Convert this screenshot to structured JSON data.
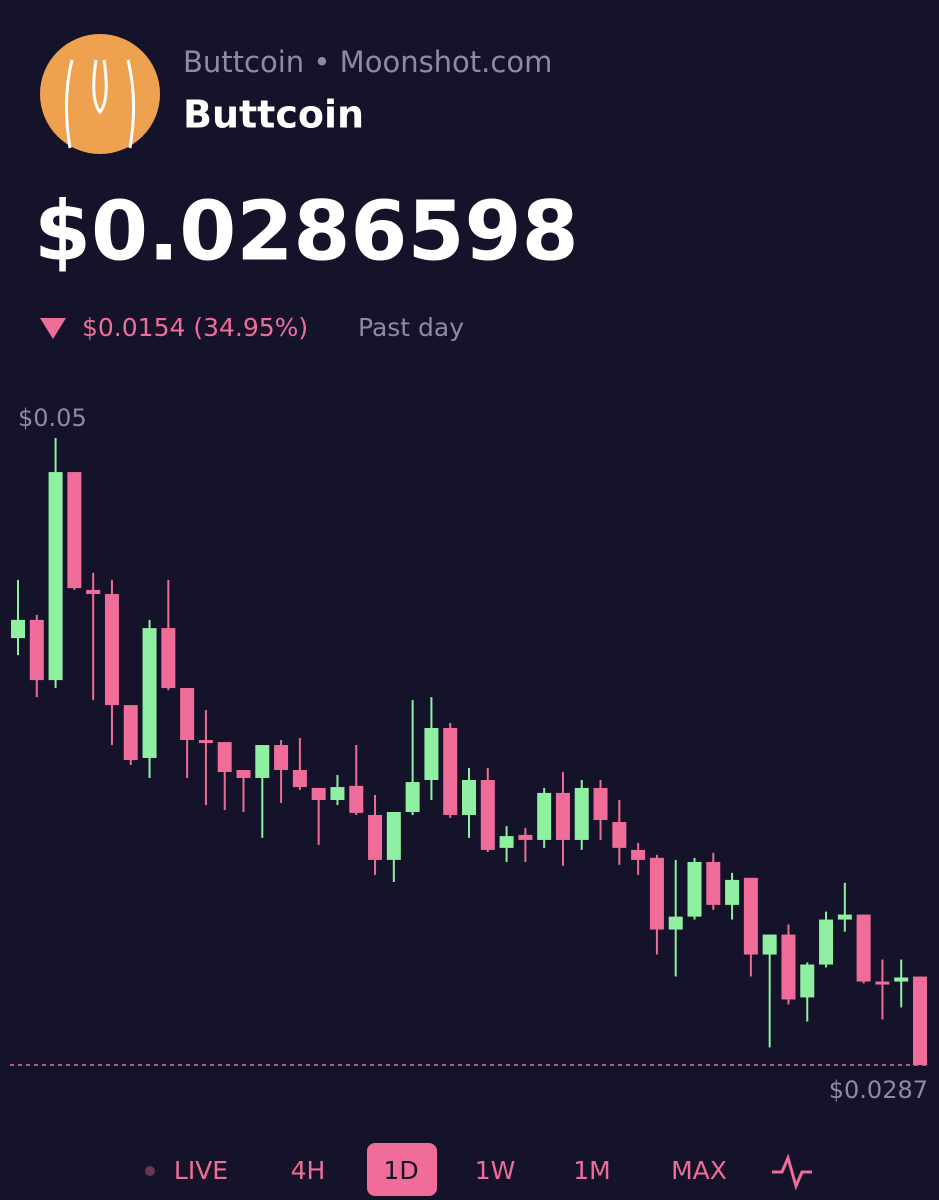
{
  "header": {
    "source": "Buttcoin • Moonshot.com",
    "name": "Buttcoin",
    "price": "$0.0286598",
    "change": "$0.0154 (34.95%)",
    "period": "Past day"
  },
  "chart_data": {
    "type": "candlestick",
    "open": [
      0.04319,
      0.04381,
      0.04176,
      0.04884,
      0.04483,
      0.04469,
      0.04091,
      0.03911,
      0.04353,
      0.04149,
      0.03972,
      0.03965,
      0.0387,
      0.03843,
      0.03955,
      0.0387,
      0.03809,
      0.03768,
      0.03816,
      0.03717,
      0.03564,
      0.03727,
      0.03836,
      0.04013,
      0.03717,
      0.03836,
      0.03605,
      0.03649,
      0.03632,
      0.03792,
      0.03632,
      0.03809,
      0.03693,
      0.03598,
      0.03571,
      0.03327,
      0.03371,
      0.03557,
      0.03411,
      0.03503,
      0.03242,
      0.0331,
      0.03096,
      0.03208,
      0.03361,
      0.03378,
      0.0315,
      0.0315,
      0.03167
    ],
    "high": [
      0.04517,
      0.04398,
      0.05,
      0.04884,
      0.04541,
      0.04517,
      0.04091,
      0.04381,
      0.04517,
      0.04149,
      0.04074,
      0.03965,
      0.0387,
      0.03955,
      0.03972,
      0.03979,
      0.03809,
      0.03853,
      0.03955,
      0.03785,
      0.03727,
      0.04108,
      0.04118,
      0.0403,
      0.03877,
      0.03877,
      0.03679,
      0.03673,
      0.03809,
      0.03863,
      0.03836,
      0.03836,
      0.03768,
      0.03622,
      0.03581,
      0.03564,
      0.03571,
      0.03588,
      0.0352,
      0.03503,
      0.0331,
      0.03344,
      0.03215,
      0.03388,
      0.03486,
      0.03378,
      0.03225,
      0.03225,
      0.03167
    ],
    "low": [
      0.04261,
      0.04118,
      0.04149,
      0.04483,
      0.04108,
      0.03955,
      0.03887,
      0.03843,
      0.04142,
      0.03843,
      0.03751,
      0.03734,
      0.03727,
      0.03639,
      0.03758,
      0.03802,
      0.03615,
      0.03751,
      0.03717,
      0.03513,
      0.03489,
      0.03717,
      0.03768,
      0.03707,
      0.03639,
      0.03591,
      0.03557,
      0.03557,
      0.03605,
      0.03544,
      0.03598,
      0.03632,
      0.03547,
      0.03513,
      0.03242,
      0.03167,
      0.03361,
      0.03394,
      0.03361,
      0.03167,
      0.02926,
      0.03072,
      0.03014,
      0.03198,
      0.0332,
      0.03144,
      0.03021,
      0.03062,
      0.02866
    ],
    "close": [
      0.04381,
      0.04176,
      0.04884,
      0.04489,
      0.04469,
      0.04091,
      0.03904,
      0.04353,
      0.04149,
      0.03972,
      0.03962,
      0.03863,
      0.03843,
      0.03955,
      0.0387,
      0.03812,
      0.03768,
      0.03812,
      0.03724,
      0.03564,
      0.03727,
      0.03829,
      0.04013,
      0.03717,
      0.03836,
      0.03598,
      0.03645,
      0.03632,
      0.03792,
      0.03632,
      0.03809,
      0.037,
      0.03605,
      0.03564,
      0.03327,
      0.03371,
      0.03557,
      0.03411,
      0.03496,
      0.03242,
      0.0331,
      0.03089,
      0.03208,
      0.03361,
      0.03378,
      0.0315,
      0.0314,
      0.03164,
      0.02866
    ],
    "up_color": "#8ef0a0",
    "down_color": "#ef6d98",
    "ylim": [
      0.02866,
      0.05
    ],
    "yticks": [
      {
        "value": 0.05,
        "label": "$0.05"
      },
      {
        "value": 0.02866,
        "label": "$0.0287"
      }
    ]
  },
  "tabs": [
    "LIVE",
    "4H",
    "1D",
    "1W",
    "1M",
    "MAX"
  ],
  "active_tab": 2
}
